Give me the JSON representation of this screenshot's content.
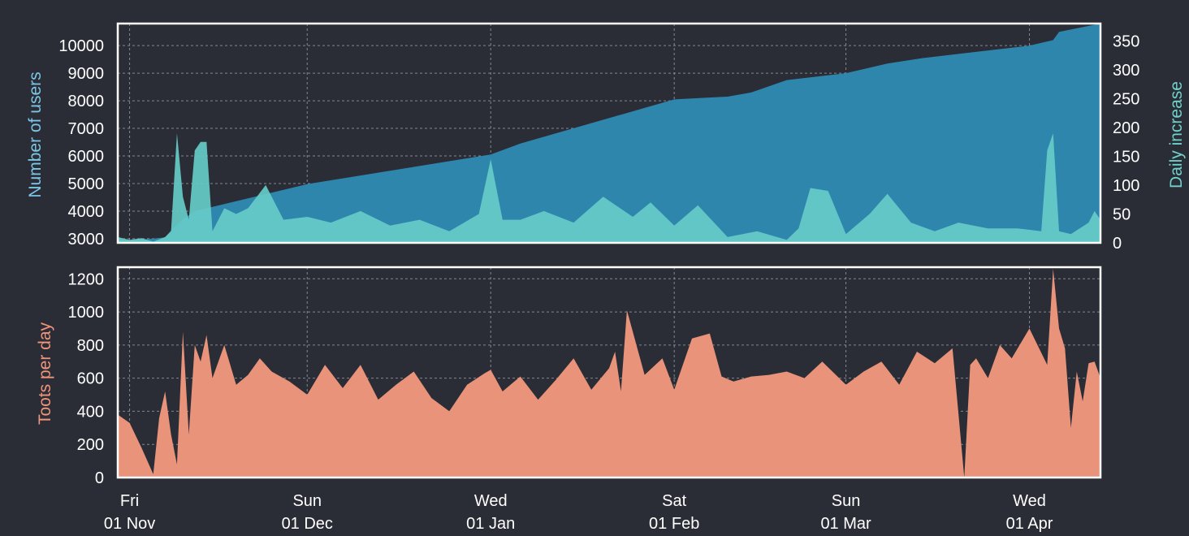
{
  "chart_data": [
    {
      "type": "area",
      "title": "",
      "ylabel": "Number of users",
      "y2label": "Daily increase",
      "ylim": [
        2850,
        10800
      ],
      "y2lim": [
        0,
        380
      ],
      "yticks": [
        3000,
        4000,
        5000,
        6000,
        7000,
        8000,
        9000,
        10000
      ],
      "y2ticks": [
        0,
        50,
        100,
        150,
        200,
        250,
        300,
        350
      ],
      "grid": true,
      "colors": {
        "users": "#2e86ad",
        "increase": "#66ccc7"
      },
      "x": [
        "2019-10-30",
        "2019-11-01",
        "2019-11-05",
        "2019-11-07",
        "2019-11-08",
        "2019-11-09",
        "2019-11-10",
        "2019-11-12",
        "2019-11-15",
        "2019-12-01",
        "2020-01-01",
        "2020-01-06",
        "2020-02-01",
        "2020-02-10",
        "2020-02-14",
        "2020-02-20",
        "2020-03-01",
        "2020-03-08",
        "2020-03-14",
        "2020-03-20",
        "2020-04-01",
        "2020-04-05",
        "2020-04-06",
        "2020-04-13"
      ],
      "series": [
        {
          "name": "users",
          "values": [
            2950,
            2950,
            3000,
            3050,
            3300,
            3500,
            3700,
            4000,
            4150,
            4980,
            6050,
            6450,
            8050,
            8150,
            8300,
            8750,
            9000,
            9350,
            9550,
            9700,
            10000,
            10200,
            10500,
            10800
          ]
        }
      ],
      "increase": {
        "x": [
          "2019-10-30",
          "2019-11-01",
          "2019-11-03",
          "2019-11-05",
          "2019-11-07",
          "2019-11-08",
          "2019-11-09",
          "2019-11-10",
          "2019-11-11",
          "2019-11-12",
          "2019-11-13",
          "2019-11-14",
          "2019-11-15",
          "2019-11-17",
          "2019-11-19",
          "2019-11-21",
          "2019-11-24",
          "2019-11-27",
          "2019-12-01",
          "2019-12-05",
          "2019-12-10",
          "2019-12-15",
          "2019-12-20",
          "2019-12-25",
          "2019-12-30",
          "2020-01-01",
          "2020-01-03",
          "2020-01-06",
          "2020-01-10",
          "2020-01-15",
          "2020-01-20",
          "2020-01-25",
          "2020-01-28",
          "2020-02-01",
          "2020-02-05",
          "2020-02-10",
          "2020-02-15",
          "2020-02-20",
          "2020-02-22",
          "2020-02-24",
          "2020-02-27",
          "2020-03-01",
          "2020-03-05",
          "2020-03-08",
          "2020-03-12",
          "2020-03-16",
          "2020-03-20",
          "2020-03-25",
          "2020-03-30",
          "2020-04-03",
          "2020-04-04",
          "2020-04-05",
          "2020-04-06",
          "2020-04-08",
          "2020-04-11",
          "2020-04-12",
          "2020-04-13"
        ],
        "values": [
          10,
          5,
          8,
          2,
          10,
          20,
          190,
          80,
          40,
          160,
          175,
          175,
          20,
          60,
          50,
          60,
          100,
          40,
          45,
          35,
          55,
          30,
          40,
          20,
          50,
          145,
          40,
          40,
          55,
          35,
          80,
          45,
          70,
          30,
          65,
          10,
          20,
          5,
          25,
          95,
          90,
          15,
          50,
          85,
          35,
          20,
          35,
          25,
          25,
          20,
          160,
          190,
          20,
          15,
          35,
          55,
          40
        ]
      }
    },
    {
      "type": "area",
      "title": "",
      "ylabel": "Toots per day",
      "ylim": [
        0,
        1270
      ],
      "yticks": [
        0,
        200,
        400,
        600,
        800,
        1000,
        1200
      ],
      "grid": true,
      "colors": {
        "toots": "#e8937a"
      },
      "xticks": [
        {
          "day": "Fri",
          "date": "01 Nov"
        },
        {
          "day": "Sun",
          "date": "01 Dec"
        },
        {
          "day": "Wed",
          "date": "01 Jan"
        },
        {
          "day": "Sat",
          "date": "01 Feb"
        },
        {
          "day": "Sun",
          "date": "01 Mar"
        },
        {
          "day": "Wed",
          "date": "01 Apr"
        }
      ],
      "x": [
        "2019-10-30",
        "2019-11-01",
        "2019-11-03",
        "2019-11-05",
        "2019-11-06",
        "2019-11-07",
        "2019-11-08",
        "2019-11-09",
        "2019-11-10",
        "2019-11-11",
        "2019-11-12",
        "2019-11-13",
        "2019-11-14",
        "2019-11-15",
        "2019-11-17",
        "2019-11-19",
        "2019-11-21",
        "2019-11-23",
        "2019-11-25",
        "2019-11-28",
        "2019-12-01",
        "2019-12-04",
        "2019-12-07",
        "2019-12-10",
        "2019-12-13",
        "2019-12-16",
        "2019-12-19",
        "2019-12-22",
        "2019-12-25",
        "2019-12-28",
        "2019-12-31",
        "2020-01-01",
        "2020-01-03",
        "2020-01-06",
        "2020-01-09",
        "2020-01-12",
        "2020-01-15",
        "2020-01-18",
        "2020-01-21",
        "2020-01-22",
        "2020-01-23",
        "2020-01-24",
        "2020-01-27",
        "2020-01-30",
        "2020-02-01",
        "2020-02-04",
        "2020-02-07",
        "2020-02-09",
        "2020-02-11",
        "2020-02-14",
        "2020-02-17",
        "2020-02-20",
        "2020-02-23",
        "2020-02-26",
        "2020-03-01",
        "2020-03-04",
        "2020-03-07",
        "2020-03-10",
        "2020-03-13",
        "2020-03-16",
        "2020-03-19",
        "2020-03-21",
        "2020-03-22",
        "2020-03-23",
        "2020-03-25",
        "2020-03-27",
        "2020-03-29",
        "2020-04-01",
        "2020-04-04",
        "2020-04-05",
        "2020-04-06",
        "2020-04-07",
        "2020-04-08",
        "2020-04-09",
        "2020-04-10",
        "2020-04-11",
        "2020-04-12",
        "2020-04-13"
      ],
      "series": [
        {
          "name": "toots",
          "values": [
            380,
            330,
            180,
            20,
            360,
            520,
            260,
            80,
            880,
            260,
            800,
            700,
            860,
            600,
            800,
            560,
            620,
            720,
            640,
            580,
            500,
            680,
            540,
            680,
            470,
            560,
            640,
            480,
            400,
            560,
            630,
            650,
            520,
            610,
            470,
            590,
            720,
            530,
            660,
            760,
            520,
            1010,
            620,
            720,
            530,
            840,
            870,
            610,
            580,
            610,
            620,
            640,
            600,
            700,
            560,
            640,
            700,
            560,
            760,
            690,
            780,
            0,
            680,
            720,
            600,
            800,
            720,
            900,
            680,
            1260,
            900,
            780,
            300,
            640,
            460,
            690,
            700,
            600
          ]
        }
      ]
    }
  ]
}
